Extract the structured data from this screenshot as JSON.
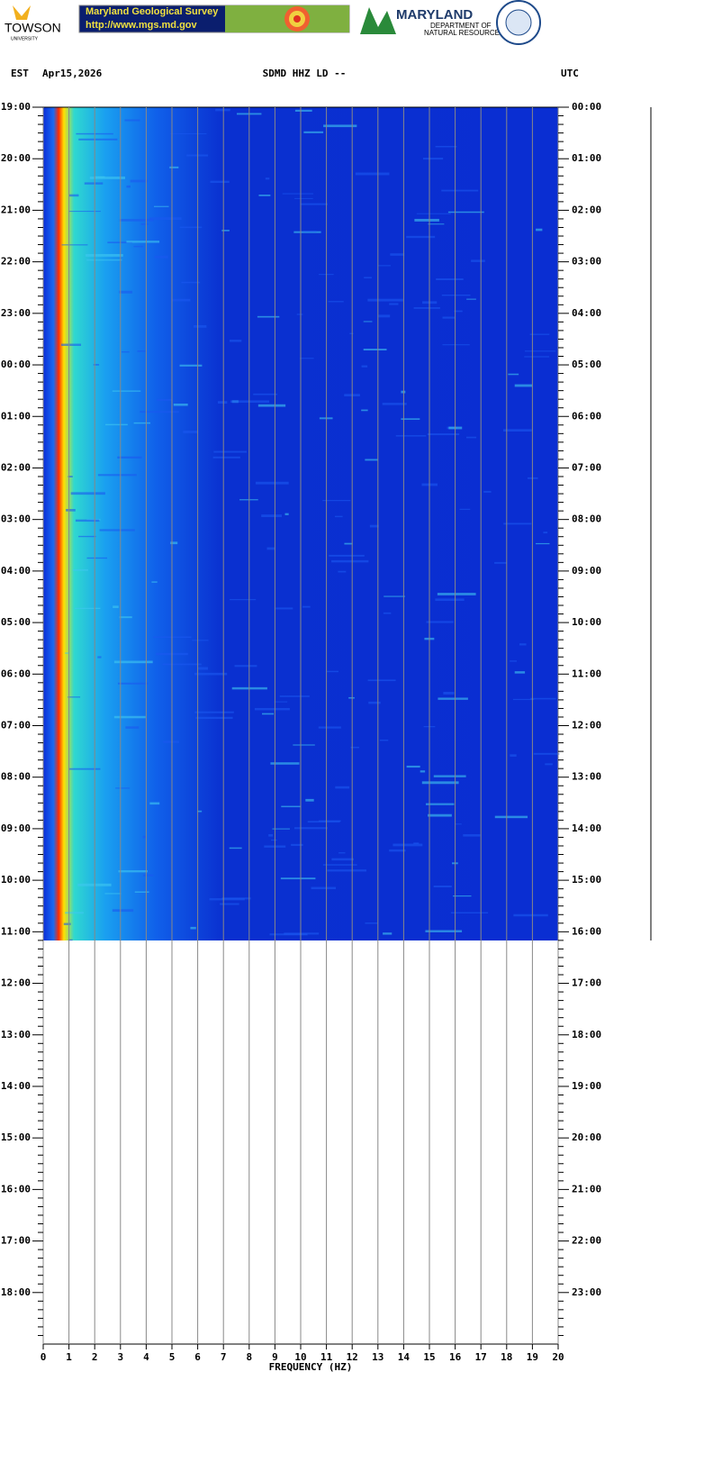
{
  "header": {
    "towson": "TOWSON",
    "towson_sub": "UNIVERSITY",
    "mgs_title": "Maryland Geological Survey",
    "mgs_url": "http://www.mgs.md.gov",
    "dnr_title": "MARYLAND",
    "dnr_sub1": "DEPARTMENT OF",
    "dnr_sub2": "NATURAL RESOURCES"
  },
  "chart_data": {
    "type": "spectrogram",
    "title": "SDMD HHZ LD --",
    "left_zone": "EST",
    "date": "Apr15,2026",
    "right_zone": "UTC",
    "x_label": "FREQUENCY (HZ)",
    "xlim": [
      0,
      20
    ],
    "xticks": [
      0,
      1,
      2,
      3,
      4,
      5,
      6,
      7,
      8,
      9,
      10,
      11,
      12,
      13,
      14,
      15,
      16,
      17,
      18,
      19,
      20
    ],
    "grid": true,
    "left_times": [
      "19:00",
      "20:00",
      "21:00",
      "22:00",
      "23:00",
      "00:00",
      "01:00",
      "02:00",
      "03:00",
      "04:00",
      "05:00",
      "06:00",
      "07:00",
      "08:00",
      "09:00",
      "10:00",
      "11:00",
      "12:00",
      "13:00",
      "14:00",
      "15:00",
      "16:00",
      "17:00",
      "18:00"
    ],
    "right_times": [
      "00:00",
      "01:00",
      "02:00",
      "03:00",
      "04:00",
      "05:00",
      "06:00",
      "07:00",
      "08:00",
      "09:00",
      "10:00",
      "11:00",
      "12:00",
      "13:00",
      "14:00",
      "15:00",
      "16:00",
      "17:00",
      "18:00",
      "19:00",
      "20:00",
      "21:00",
      "22:00",
      "23:00"
    ]
  }
}
